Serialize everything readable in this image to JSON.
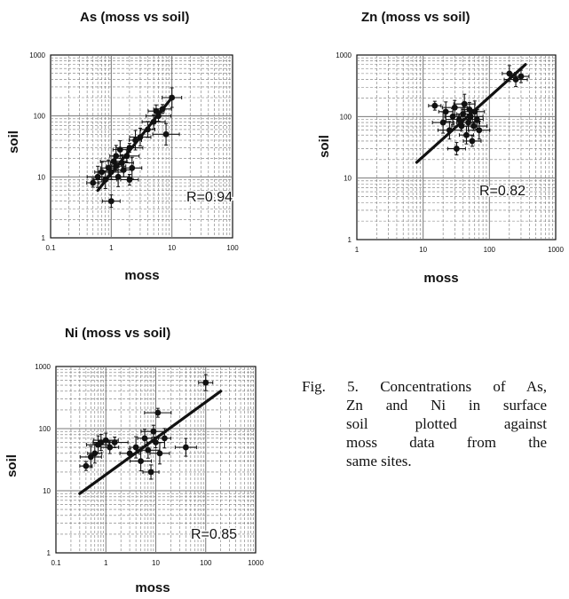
{
  "chart_data": [
    {
      "type": "scatter",
      "title": "As (moss vs soil)",
      "xlabel": "moss",
      "ylabel": "soil",
      "xscale": "log",
      "yscale": "log",
      "xlim": [
        0.1,
        100
      ],
      "ylim": [
        1,
        1000
      ],
      "xticks": [
        "0.1",
        "1",
        "10",
        "100"
      ],
      "yticks": [
        "1",
        "10",
        "100",
        "1000"
      ],
      "grid": true,
      "error_bars": true,
      "annotation": "R=0.94",
      "trendline": {
        "x": [
          0.6,
          10
        ],
        "y": [
          6,
          200
        ]
      },
      "points": [
        {
          "x": 0.5,
          "y": 8
        },
        {
          "x": 0.6,
          "y": 10
        },
        {
          "x": 0.7,
          "y": 12
        },
        {
          "x": 0.8,
          "y": 9
        },
        {
          "x": 0.9,
          "y": 14
        },
        {
          "x": 1.0,
          "y": 12
        },
        {
          "x": 1.0,
          "y": 4
        },
        {
          "x": 1.1,
          "y": 18
        },
        {
          "x": 1.2,
          "y": 15
        },
        {
          "x": 1.2,
          "y": 22
        },
        {
          "x": 1.3,
          "y": 10
        },
        {
          "x": 1.4,
          "y": 28
        },
        {
          "x": 1.5,
          "y": 17
        },
        {
          "x": 1.6,
          "y": 13
        },
        {
          "x": 1.8,
          "y": 22
        },
        {
          "x": 2.0,
          "y": 9
        },
        {
          "x": 2.0,
          "y": 30
        },
        {
          "x": 2.2,
          "y": 14
        },
        {
          "x": 2.5,
          "y": 40
        },
        {
          "x": 3.0,
          "y": 45
        },
        {
          "x": 4.0,
          "y": 60
        },
        {
          "x": 5.0,
          "y": 80
        },
        {
          "x": 5.5,
          "y": 120
        },
        {
          "x": 6.0,
          "y": 100
        },
        {
          "x": 7.0,
          "y": 130
        },
        {
          "x": 8.0,
          "y": 50
        },
        {
          "x": 10.0,
          "y": 200
        }
      ]
    },
    {
      "type": "scatter",
      "title": "Zn (moss vs soil)",
      "xlabel": "moss",
      "ylabel": "soil",
      "xscale": "log",
      "yscale": "log",
      "xlim": [
        1,
        1000
      ],
      "ylim": [
        1,
        1000
      ],
      "xticks": [
        "1",
        "10",
        "100",
        "1000"
      ],
      "yticks": [
        "1",
        "10",
        "100",
        "1000"
      ],
      "grid": true,
      "error_bars": true,
      "annotation": "R=0.82",
      "trendline": {
        "x": [
          8,
          350
        ],
        "y": [
          18,
          700
        ]
      },
      "points": [
        {
          "x": 15,
          "y": 150
        },
        {
          "x": 20,
          "y": 80
        },
        {
          "x": 22,
          "y": 120
        },
        {
          "x": 25,
          "y": 60
        },
        {
          "x": 28,
          "y": 100
        },
        {
          "x": 30,
          "y": 140
        },
        {
          "x": 32,
          "y": 30
        },
        {
          "x": 35,
          "y": 90
        },
        {
          "x": 38,
          "y": 70
        },
        {
          "x": 40,
          "y": 110
        },
        {
          "x": 42,
          "y": 160
        },
        {
          "x": 45,
          "y": 50
        },
        {
          "x": 48,
          "y": 80
        },
        {
          "x": 50,
          "y": 130
        },
        {
          "x": 52,
          "y": 100
        },
        {
          "x": 55,
          "y": 40
        },
        {
          "x": 58,
          "y": 70
        },
        {
          "x": 60,
          "y": 120
        },
        {
          "x": 65,
          "y": 90
        },
        {
          "x": 70,
          "y": 60
        },
        {
          "x": 200,
          "y": 500
        },
        {
          "x": 250,
          "y": 400
        },
        {
          "x": 300,
          "y": 450
        }
      ]
    },
    {
      "type": "scatter",
      "title": "Ni (moss vs soil)",
      "xlabel": "moss",
      "ylabel": "soil",
      "xscale": "log",
      "yscale": "log",
      "xlim": [
        0.1,
        1000
      ],
      "ylim": [
        1,
        1000
      ],
      "xticks": [
        "0.1",
        "1",
        "10",
        "100",
        "1000"
      ],
      "yticks": [
        "1",
        "10",
        "100",
        "1000"
      ],
      "grid": true,
      "error_bars": true,
      "annotation": "R=0.85",
      "trendline": {
        "x": [
          0.3,
          200
        ],
        "y": [
          9,
          400
        ]
      },
      "points": [
        {
          "x": 0.4,
          "y": 25
        },
        {
          "x": 0.5,
          "y": 35
        },
        {
          "x": 0.6,
          "y": 40
        },
        {
          "x": 0.7,
          "y": 55
        },
        {
          "x": 0.8,
          "y": 60
        },
        {
          "x": 1.0,
          "y": 65
        },
        {
          "x": 1.2,
          "y": 50
        },
        {
          "x": 1.5,
          "y": 60
        },
        {
          "x": 3.0,
          "y": 40
        },
        {
          "x": 4.0,
          "y": 50
        },
        {
          "x": 5.0,
          "y": 30
        },
        {
          "x": 6.0,
          "y": 70
        },
        {
          "x": 7.0,
          "y": 45
        },
        {
          "x": 8.0,
          "y": 20
        },
        {
          "x": 9.0,
          "y": 90
        },
        {
          "x": 10.0,
          "y": 60
        },
        {
          "x": 11.0,
          "y": 180
        },
        {
          "x": 12.0,
          "y": 40
        },
        {
          "x": 15.0,
          "y": 70
        },
        {
          "x": 40.0,
          "y": 50
        },
        {
          "x": 100.0,
          "y": 550
        }
      ]
    }
  ],
  "caption": {
    "line1": "Fig. 5. Concentrations of As,",
    "line2": "Zn and Ni in surface",
    "line3": "soil plotted against",
    "line4": "moss data from the",
    "line5": "same sites."
  },
  "colors": {
    "marks": "#111111",
    "grid": "#777777",
    "background": "#ffffff"
  }
}
